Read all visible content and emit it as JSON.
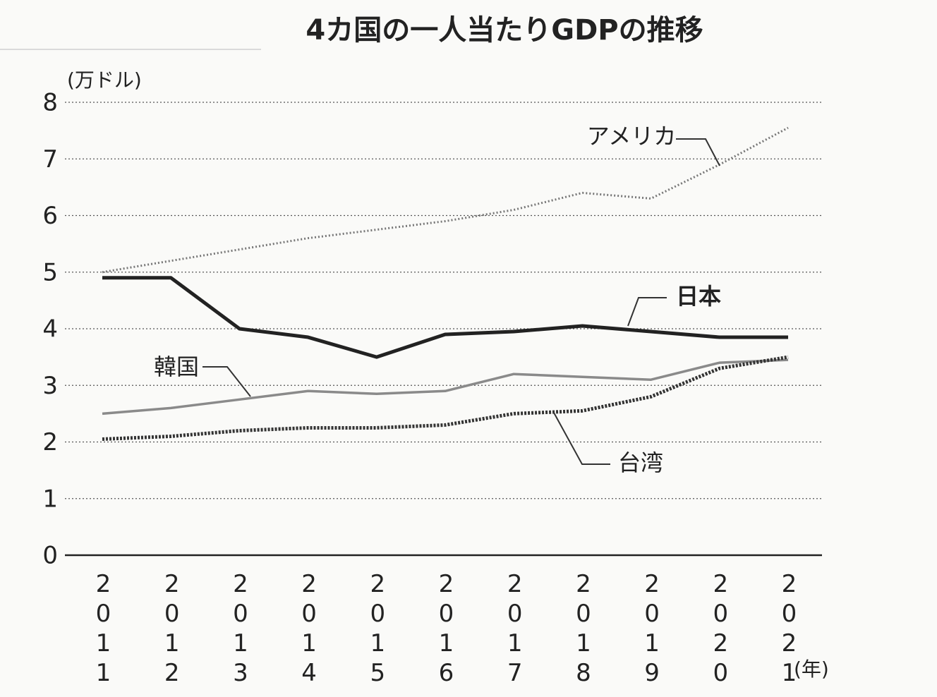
{
  "chart_data": {
    "type": "line",
    "title": "4カ国の一人当たりGDPの推移",
    "y_label": "(万ドル)",
    "x_label": "(年)",
    "categories": [
      "2011",
      "2012",
      "2013",
      "2014",
      "2015",
      "2016",
      "2017",
      "2018",
      "2019",
      "2020",
      "2021"
    ],
    "series": [
      {
        "name": "アメリカ",
        "color": "#777777",
        "values": [
          5.0,
          5.2,
          5.4,
          5.6,
          5.75,
          5.9,
          6.1,
          6.4,
          6.3,
          6.9,
          7.55
        ]
      },
      {
        "name": "日本",
        "color": "#222222",
        "values": [
          4.9,
          4.9,
          4.0,
          3.85,
          3.5,
          3.9,
          3.95,
          4.05,
          3.95,
          3.85,
          3.85
        ]
      },
      {
        "name": "韓国",
        "color": "#8a8a8a",
        "values": [
          2.5,
          2.6,
          2.75,
          2.9,
          2.85,
          2.9,
          3.2,
          3.15,
          3.1,
          3.4,
          3.45
        ]
      },
      {
        "name": "台湾",
        "color": "#333333",
        "values": [
          2.05,
          2.1,
          2.2,
          2.25,
          2.25,
          2.3,
          2.5,
          2.55,
          2.8,
          3.3,
          3.5
        ]
      }
    ],
    "ylim": [
      0,
      8
    ],
    "yticks": [
      0,
      1,
      2,
      3,
      4,
      5,
      6,
      7,
      8
    ],
    "grid": true
  }
}
